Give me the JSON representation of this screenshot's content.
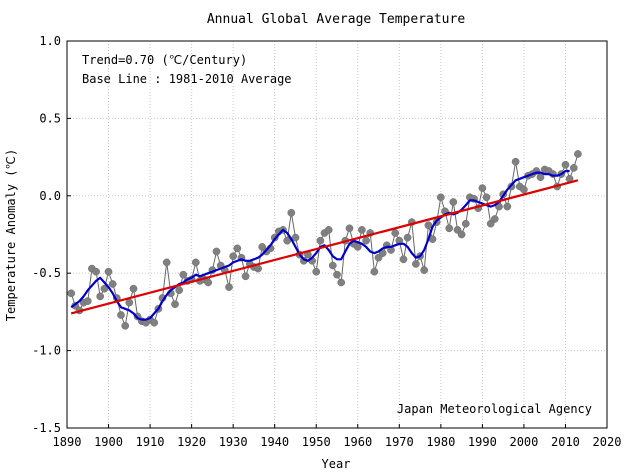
{
  "chart_data": {
    "type": "line",
    "title": "Annual Global Average Temperature",
    "xlabel": "Year",
    "ylabel": "Temperature Anomaly (℃)",
    "xlim": [
      1890,
      2020
    ],
    "ylim": [
      -1.5,
      1.0
    ],
    "xticks": [
      1890,
      1900,
      1910,
      1920,
      1930,
      1940,
      1950,
      1960,
      1970,
      1980,
      1990,
      2000,
      2010,
      2020
    ],
    "yticks": [
      1.0,
      0.5,
      0.0,
      -0.5,
      -1.0,
      -1.5
    ],
    "ytick_labels": [
      "1.0",
      "0.5",
      "0.0",
      "-0.5",
      "-1.0",
      "-1.5"
    ],
    "grid": true,
    "annotations": {
      "trend": "Trend=0.70 (℃/Century)",
      "baseline": "Base Line : 1981-2010 Average",
      "source": "Japan Meteorological Agency"
    },
    "colors": {
      "annual_points": "#808080",
      "annual_line": "#666666",
      "moving_average": "#0000cc",
      "trend": "#dd0000",
      "grid": "#c8c8c8"
    },
    "series": [
      {
        "kind": "annual",
        "x": [
          1891,
          1892,
          1893,
          1894,
          1895,
          1896,
          1897,
          1898,
          1899,
          1900,
          1901,
          1902,
          1903,
          1904,
          1905,
          1906,
          1907,
          1908,
          1909,
          1910,
          1911,
          1912,
          1913,
          1914,
          1915,
          1916,
          1917,
          1918,
          1919,
          1920,
          1921,
          1922,
          1923,
          1924,
          1925,
          1926,
          1927,
          1928,
          1929,
          1930,
          1931,
          1932,
          1933,
          1934,
          1935,
          1936,
          1937,
          1938,
          1939,
          1940,
          1941,
          1942,
          1943,
          1944,
          1945,
          1946,
          1947,
          1948,
          1949,
          1950,
          1951,
          1952,
          1953,
          1954,
          1955,
          1956,
          1957,
          1958,
          1959,
          1960,
          1961,
          1962,
          1963,
          1964,
          1965,
          1966,
          1967,
          1968,
          1969,
          1970,
          1971,
          1972,
          1973,
          1974,
          1975,
          1976,
          1977,
          1978,
          1979,
          1980,
          1981,
          1982,
          1983,
          1984,
          1985,
          1986,
          1987,
          1988,
          1989,
          1990,
          1991,
          1992,
          1993,
          1994,
          1995,
          1996,
          1997,
          1998,
          1999,
          2000,
          2001,
          2002,
          2003,
          2004,
          2005,
          2006,
          2007,
          2008,
          2009,
          2010,
          2011,
          2012,
          2013
        ],
        "values": [
          -0.63,
          -0.71,
          -0.74,
          -0.69,
          -0.68,
          -0.47,
          -0.49,
          -0.65,
          -0.6,
          -0.49,
          -0.57,
          -0.66,
          -0.77,
          -0.84,
          -0.69,
          -0.6,
          -0.78,
          -0.81,
          -0.82,
          -0.8,
          -0.82,
          -0.73,
          -0.66,
          -0.43,
          -0.63,
          -0.7,
          -0.61,
          -0.51,
          -0.55,
          -0.54,
          -0.43,
          -0.55,
          -0.54,
          -0.56,
          -0.48,
          -0.36,
          -0.45,
          -0.48,
          -0.59,
          -0.39,
          -0.34,
          -0.4,
          -0.52,
          -0.44,
          -0.46,
          -0.47,
          -0.33,
          -0.36,
          -0.34,
          -0.27,
          -0.23,
          -0.22,
          -0.29,
          -0.11,
          -0.27,
          -0.38,
          -0.42,
          -0.38,
          -0.42,
          -0.49,
          -0.29,
          -0.24,
          -0.22,
          -0.45,
          -0.51,
          -0.56,
          -0.29,
          -0.21,
          -0.31,
          -0.33,
          -0.22,
          -0.29,
          -0.24,
          -0.49,
          -0.4,
          -0.37,
          -0.32,
          -0.35,
          -0.24,
          -0.29,
          -0.41,
          -0.27,
          -0.17,
          -0.44,
          -0.39,
          -0.48,
          -0.19,
          -0.28,
          -0.17,
          -0.01,
          -0.1,
          -0.21,
          -0.04,
          -0.22,
          -0.25,
          -0.18,
          -0.01,
          -0.02,
          -0.08,
          0.05,
          -0.01,
          -0.18,
          -0.15,
          -0.07,
          0.01,
          -0.07,
          0.06,
          0.22,
          0.06,
          0.04,
          0.13,
          0.14,
          0.16,
          0.12,
          0.17,
          0.16,
          0.14,
          0.06,
          0.14,
          0.2,
          0.11,
          0.18,
          0.27
        ]
      },
      {
        "kind": "moving_average",
        "x": [
          1891,
          1892,
          1893,
          1894,
          1895,
          1896,
          1897,
          1898,
          1899,
          1900,
          1901,
          1902,
          1903,
          1904,
          1905,
          1906,
          1907,
          1908,
          1909,
          1910,
          1911,
          1912,
          1913,
          1914,
          1915,
          1916,
          1917,
          1918,
          1919,
          1920,
          1921,
          1922,
          1923,
          1924,
          1925,
          1926,
          1927,
          1928,
          1929,
          1930,
          1931,
          1932,
          1933,
          1934,
          1935,
          1936,
          1937,
          1938,
          1939,
          1940,
          1941,
          1942,
          1943,
          1944,
          1945,
          1946,
          1947,
          1948,
          1949,
          1950,
          1951,
          1952,
          1953,
          1954,
          1955,
          1956,
          1957,
          1958,
          1959,
          1960,
          1961,
          1962,
          1963,
          1964,
          1965,
          1966,
          1967,
          1968,
          1969,
          1970,
          1971,
          1972,
          1973,
          1974,
          1975,
          1976,
          1977,
          1978,
          1979,
          1980,
          1981,
          1982,
          1983,
          1984,
          1985,
          1986,
          1987,
          1988,
          1989,
          1990,
          1991,
          1992,
          1993,
          1994,
          1995,
          1996,
          1997,
          1998,
          1999,
          2000,
          2001,
          2002,
          2003,
          2004,
          2005,
          2006,
          2007,
          2008,
          2009,
          2010,
          2011
        ],
        "values": [
          -0.72,
          -0.7,
          -0.68,
          -0.65,
          -0.61,
          -0.58,
          -0.55,
          -0.53,
          -0.56,
          -0.59,
          -0.63,
          -0.68,
          -0.72,
          -0.73,
          -0.74,
          -0.76,
          -0.79,
          -0.8,
          -0.8,
          -0.79,
          -0.76,
          -0.73,
          -0.68,
          -0.64,
          -0.61,
          -0.59,
          -0.57,
          -0.56,
          -0.54,
          -0.53,
          -0.51,
          -0.52,
          -0.51,
          -0.5,
          -0.49,
          -0.48,
          -0.47,
          -0.46,
          -0.45,
          -0.43,
          -0.42,
          -0.41,
          -0.42,
          -0.42,
          -0.41,
          -0.4,
          -0.38,
          -0.35,
          -0.32,
          -0.28,
          -0.25,
          -0.22,
          -0.24,
          -0.28,
          -0.33,
          -0.38,
          -0.41,
          -0.42,
          -0.4,
          -0.37,
          -0.33,
          -0.32,
          -0.35,
          -0.39,
          -0.41,
          -0.41,
          -0.36,
          -0.31,
          -0.29,
          -0.3,
          -0.31,
          -0.33,
          -0.36,
          -0.37,
          -0.36,
          -0.34,
          -0.33,
          -0.33,
          -0.32,
          -0.31,
          -0.31,
          -0.33,
          -0.37,
          -0.4,
          -0.39,
          -0.35,
          -0.28,
          -0.2,
          -0.16,
          -0.14,
          -0.12,
          -0.11,
          -0.12,
          -0.11,
          -0.09,
          -0.06,
          -0.03,
          -0.03,
          -0.04,
          -0.05,
          -0.06,
          -0.07,
          -0.06,
          -0.04,
          0.0,
          0.04,
          0.07,
          0.1,
          0.11,
          0.12,
          0.13,
          0.14,
          0.15,
          0.15,
          0.14,
          0.14,
          0.13,
          0.13,
          0.14,
          0.16,
          0.16
        ]
      },
      {
        "kind": "trend",
        "x": [
          1891,
          2013
        ],
        "values": [
          -0.76,
          0.1
        ]
      }
    ]
  }
}
